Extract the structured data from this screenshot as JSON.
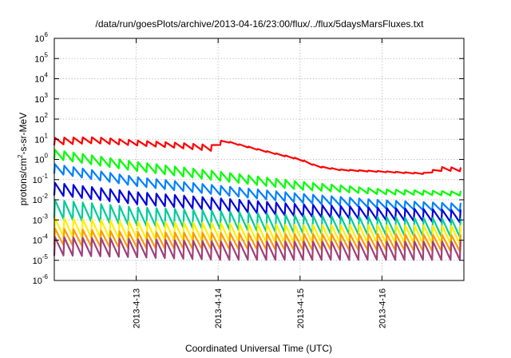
{
  "chart_data": {
    "type": "line",
    "title": "/data/run/goesPlots/archive/2013-04-16/23:00/flux/../flux/5daysMarsFluxes.txt",
    "xlabel": "Coordinated Universal Time (UTC)",
    "ylabel": {
      "base": "protons/cm",
      "sup": "2",
      "rest": "-s-sr-MeV"
    },
    "xlim": [
      "2013-04-12 00:00",
      "2013-04-17 00:00"
    ],
    "ylim": [
      1e-06,
      1000000.0
    ],
    "yscale": "log",
    "grid": true,
    "x_ticks": [
      "2013-4-13",
      "2013-4-14",
      "2013-4-15",
      "2013-4-16"
    ],
    "y_ticks": [
      {
        "base": "10",
        "exp": "6"
      },
      {
        "base": "10",
        "exp": "5"
      },
      {
        "base": "10",
        "exp": "4"
      },
      {
        "base": "10",
        "exp": "3"
      },
      {
        "base": "10",
        "exp": "2"
      },
      {
        "base": "10",
        "exp": "1"
      },
      {
        "base": "10",
        "exp": "0"
      },
      {
        "base": "10",
        "exp": "-1"
      },
      {
        "base": "10",
        "exp": "-2"
      },
      {
        "base": "10",
        "exp": "-3"
      },
      {
        "base": "10",
        "exp": "-4"
      },
      {
        "base": "10",
        "exp": "-5"
      },
      {
        "base": "10",
        "exp": "-6"
      }
    ],
    "sawtooth_period_hours": 2.7,
    "series": [
      {
        "color": "#ff0000",
        "points": [
          [
            "2013-04-12 00:00",
            8
          ],
          [
            "2013-04-12 12:00",
            9
          ],
          [
            "2013-04-13 00:00",
            6.5
          ],
          [
            "2013-04-13 12:00",
            5
          ],
          [
            "2013-04-14 00:00",
            3.5
          ],
          [
            "2013-04-14 01:00",
            9
          ],
          [
            "2013-04-14 12:00",
            3
          ],
          [
            "2013-04-15 00:00",
            1
          ],
          [
            "2013-04-15 05:00",
            0.45
          ],
          [
            "2013-04-15 12:00",
            0.3
          ],
          [
            "2013-04-16 00:00",
            0.25
          ],
          [
            "2013-04-16 12:00",
            0.2
          ],
          [
            "2013-04-16 18:00",
            0.35
          ],
          [
            "2013-04-17 00:00",
            0.3
          ]
        ],
        "amplitude_decades": [
          0.35,
          0.3,
          0.25,
          0.25,
          0.3,
          0.05,
          0.05,
          0.05,
          0.05,
          0.05,
          0.05,
          0.05,
          0.2,
          0.15
        ]
      },
      {
        "color": "#00ff00",
        "points": [
          [
            "2013-04-12 00:00",
            1.8
          ],
          [
            "2013-04-13 00:00",
            0.45
          ],
          [
            "2013-04-14 00:00",
            0.15
          ],
          [
            "2013-04-15 00:00",
            0.05
          ],
          [
            "2013-04-16 00:00",
            0.025
          ],
          [
            "2013-04-17 00:00",
            0.02
          ]
        ],
        "amplitude_decades": [
          0.45,
          0.45,
          0.45,
          0.4,
          0.25,
          0.2
        ]
      },
      {
        "color": "#0080ff",
        "points": [
          [
            "2013-04-12 00:00",
            0.35
          ],
          [
            "2013-04-13 00:00",
            0.08
          ],
          [
            "2013-04-14 00:00",
            0.03
          ],
          [
            "2013-04-15 00:00",
            0.012
          ],
          [
            "2013-04-16 00:00",
            0.006
          ],
          [
            "2013-04-17 00:00",
            0.004
          ]
        ],
        "amplitude_decades": [
          0.45,
          0.45,
          0.45,
          0.45,
          0.4,
          0.4
        ]
      },
      {
        "color": "#0000dd",
        "points": [
          [
            "2013-04-12 00:00",
            0.035
          ],
          [
            "2013-04-13 00:00",
            0.012
          ],
          [
            "2013-04-14 00:00",
            0.006
          ],
          [
            "2013-04-15 00:00",
            0.003
          ],
          [
            "2013-04-16 00:00",
            0.002
          ],
          [
            "2013-04-17 00:00",
            0.0015
          ]
        ],
        "amplitude_decades": [
          0.6,
          0.6,
          0.6,
          0.6,
          0.6,
          0.6
        ]
      },
      {
        "color": "#00cc99",
        "points": [
          [
            "2013-04-12 00:00",
            0.0035
          ],
          [
            "2013-04-13 00:00",
            0.0015
          ],
          [
            "2013-04-14 00:00",
            0.001
          ],
          [
            "2013-04-15 00:00",
            0.0006
          ],
          [
            "2013-04-16 00:00",
            0.0005
          ],
          [
            "2013-04-17 00:00",
            0.0004
          ]
        ],
        "amplitude_decades": [
          0.9,
          0.9,
          0.9,
          0.9,
          0.9,
          0.9
        ]
      },
      {
        "color": "#ffee00",
        "points": [
          [
            "2013-04-12 00:00",
            0.00045
          ],
          [
            "2013-04-13 00:00",
            0.0003
          ],
          [
            "2013-04-14 00:00",
            0.00025
          ],
          [
            "2013-04-15 00:00",
            0.0002
          ],
          [
            "2013-04-16 00:00",
            0.0002
          ],
          [
            "2013-04-17 00:00",
            0.00018
          ]
        ],
        "amplitude_decades": [
          0.9,
          0.9,
          0.9,
          0.9,
          0.9,
          0.9
        ]
      },
      {
        "color": "#ff9900",
        "points": [
          [
            "2013-04-12 00:00",
            0.00015
          ],
          [
            "2013-04-13 00:00",
            0.0001
          ],
          [
            "2013-04-14 00:00",
            9e-05
          ],
          [
            "2013-04-15 00:00",
            8e-05
          ],
          [
            "2013-04-16 00:00",
            8e-05
          ],
          [
            "2013-04-17 00:00",
            7e-05
          ]
        ],
        "amplitude_decades": [
          0.8,
          0.8,
          0.8,
          0.8,
          0.8,
          0.8
        ]
      },
      {
        "color": "#a0407a",
        "points": [
          [
            "2013-04-12 00:00",
            5e-05
          ],
          [
            "2013-04-13 00:00",
            4e-05
          ],
          [
            "2013-04-14 00:00",
            3e-05
          ],
          [
            "2013-04-15 00:00",
            3e-05
          ],
          [
            "2013-04-16 00:00",
            3e-05
          ],
          [
            "2013-04-17 00:00",
            3e-05
          ]
        ],
        "amplitude_decades": [
          0.9,
          0.9,
          0.9,
          0.9,
          0.9,
          0.9
        ]
      }
    ]
  }
}
